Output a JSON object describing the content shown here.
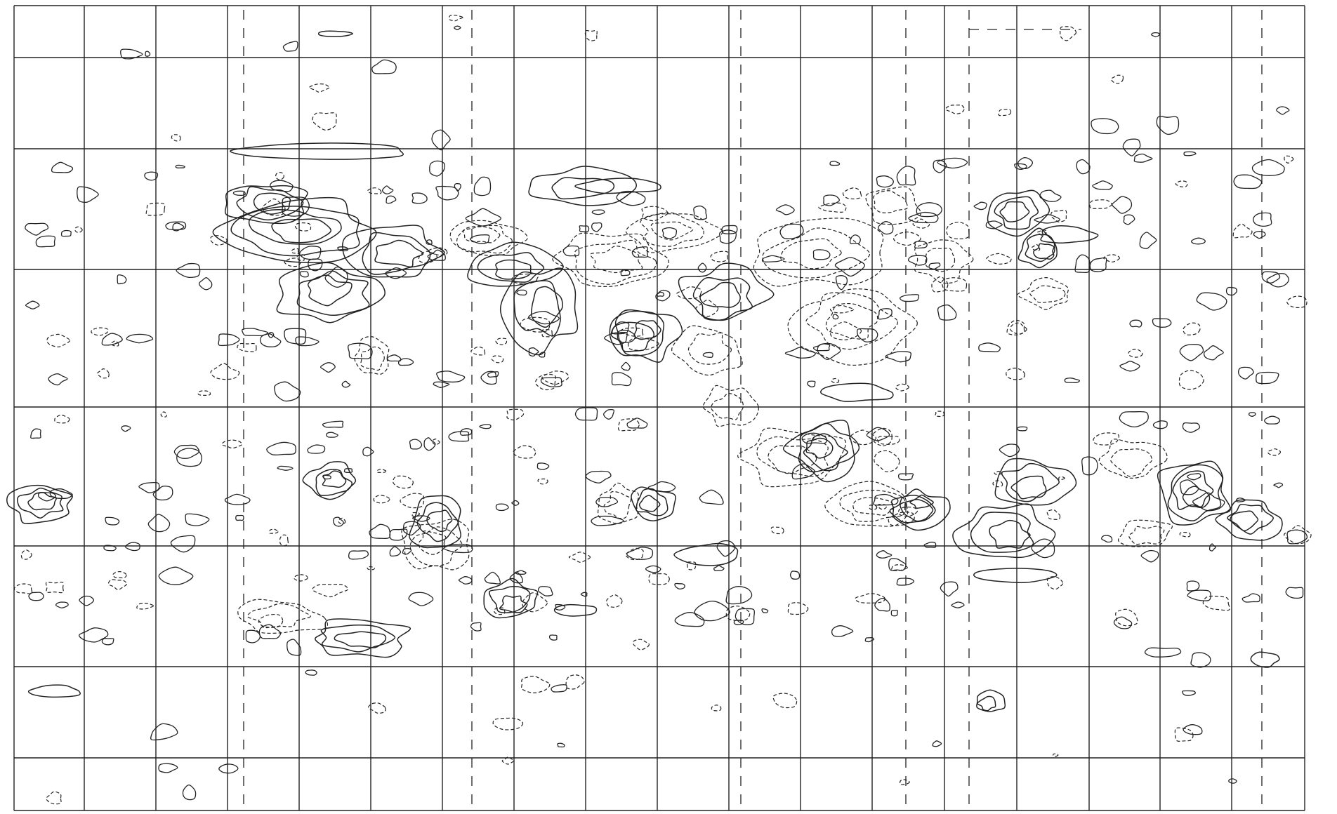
{
  "figure": {
    "kind": "contour map",
    "grid": "on",
    "labels_printed": "none",
    "ink_color": "#222222",
    "background_color": "#ffffff"
  },
  "legend": {
    "solid_contour": "positive",
    "dashed_contour": "negative"
  }
}
